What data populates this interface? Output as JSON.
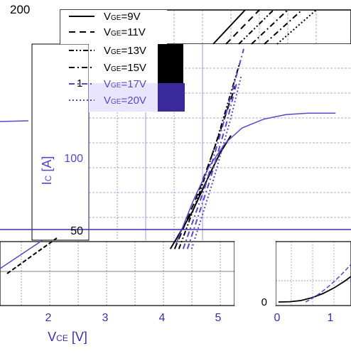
{
  "chart_data": [
    {
      "type": "line",
      "xlabel_main": "V",
      "xlabel_sub": "CE",
      "xlabel_unit": " [V]",
      "ylabel_main": "I",
      "ylabel_sub": "C",
      "ylabel_unit": " [A]",
      "x_ticks": [
        2,
        3,
        4,
        5
      ],
      "y_ticks": [
        50,
        100
      ],
      "y_top_label": "200",
      "xlim": [
        1.4,
        5.4
      ],
      "ylim": [
        30,
        200
      ],
      "grid": true,
      "legend_position": "top-left",
      "series": [
        {
          "name": "9V",
          "gate_label": "GE",
          "style": "solid",
          "x": [
            4.3,
            4.7,
            5.0,
            5.2,
            5.4
          ],
          "y": [
            37,
            62,
            86,
            101,
            113
          ]
        },
        {
          "name": "11V",
          "gate_label": "GE",
          "style": "dash",
          "x": [
            4.3,
            4.7,
            5.0,
            5.2,
            5.4
          ],
          "y": [
            37,
            72,
            102,
            124,
            146
          ]
        },
        {
          "name": "13V",
          "gate_label": "GE",
          "style": "dashdotdot",
          "x": [
            4.3,
            4.7,
            5.0,
            5.2,
            5.4
          ],
          "y": [
            37,
            77,
            111,
            136,
            161
          ]
        },
        {
          "name": "15V",
          "gate_label": "GE",
          "style": "dashdot",
          "x": [
            4.3,
            4.7,
            5.0,
            5.2,
            5.4
          ],
          "y": [
            37,
            79,
            117,
            144,
            171
          ]
        },
        {
          "name": "17V",
          "gate_label": "GE",
          "style": "dashdot",
          "x": [
            4.3,
            4.7,
            5.0,
            5.2,
            5.4
          ],
          "y": [
            37,
            82,
            120,
            149,
            178
          ]
        },
        {
          "name": "20V",
          "gate_label": "GE",
          "style": "dot",
          "x": [
            4.3,
            4.7,
            5.0,
            5.2,
            5.4
          ],
          "y": [
            37,
            84,
            123,
            153,
            183
          ]
        }
      ]
    },
    {
      "type": "line",
      "x_ticks": [
        0,
        1
      ],
      "y_ticks": [
        0
      ],
      "xlim": [
        -0.05,
        1.3
      ],
      "ylim": [
        0,
        40
      ],
      "grid": true,
      "series": [
        {
          "x": [
            0,
            0.2,
            0.4,
            0.6,
            0.8,
            1.0,
            1.2,
            1.3
          ],
          "y": [
            0,
            0.2,
            1,
            3,
            6,
            10,
            15,
            18
          ]
        }
      ]
    }
  ],
  "overlay_curve": {
    "x": [
      4.4,
      4.7,
      5.0,
      5.3,
      5.6,
      6.0,
      6.4,
      6.8,
      7.3
    ],
    "y": [
      40,
      68,
      92,
      108,
      118,
      124,
      127,
      128,
      128
    ]
  },
  "colors": {
    "blue_accent": "#5b46c8",
    "grid_blue": "#3a2eb0",
    "ink": "#000000",
    "light_band": "#e8e6ff"
  }
}
